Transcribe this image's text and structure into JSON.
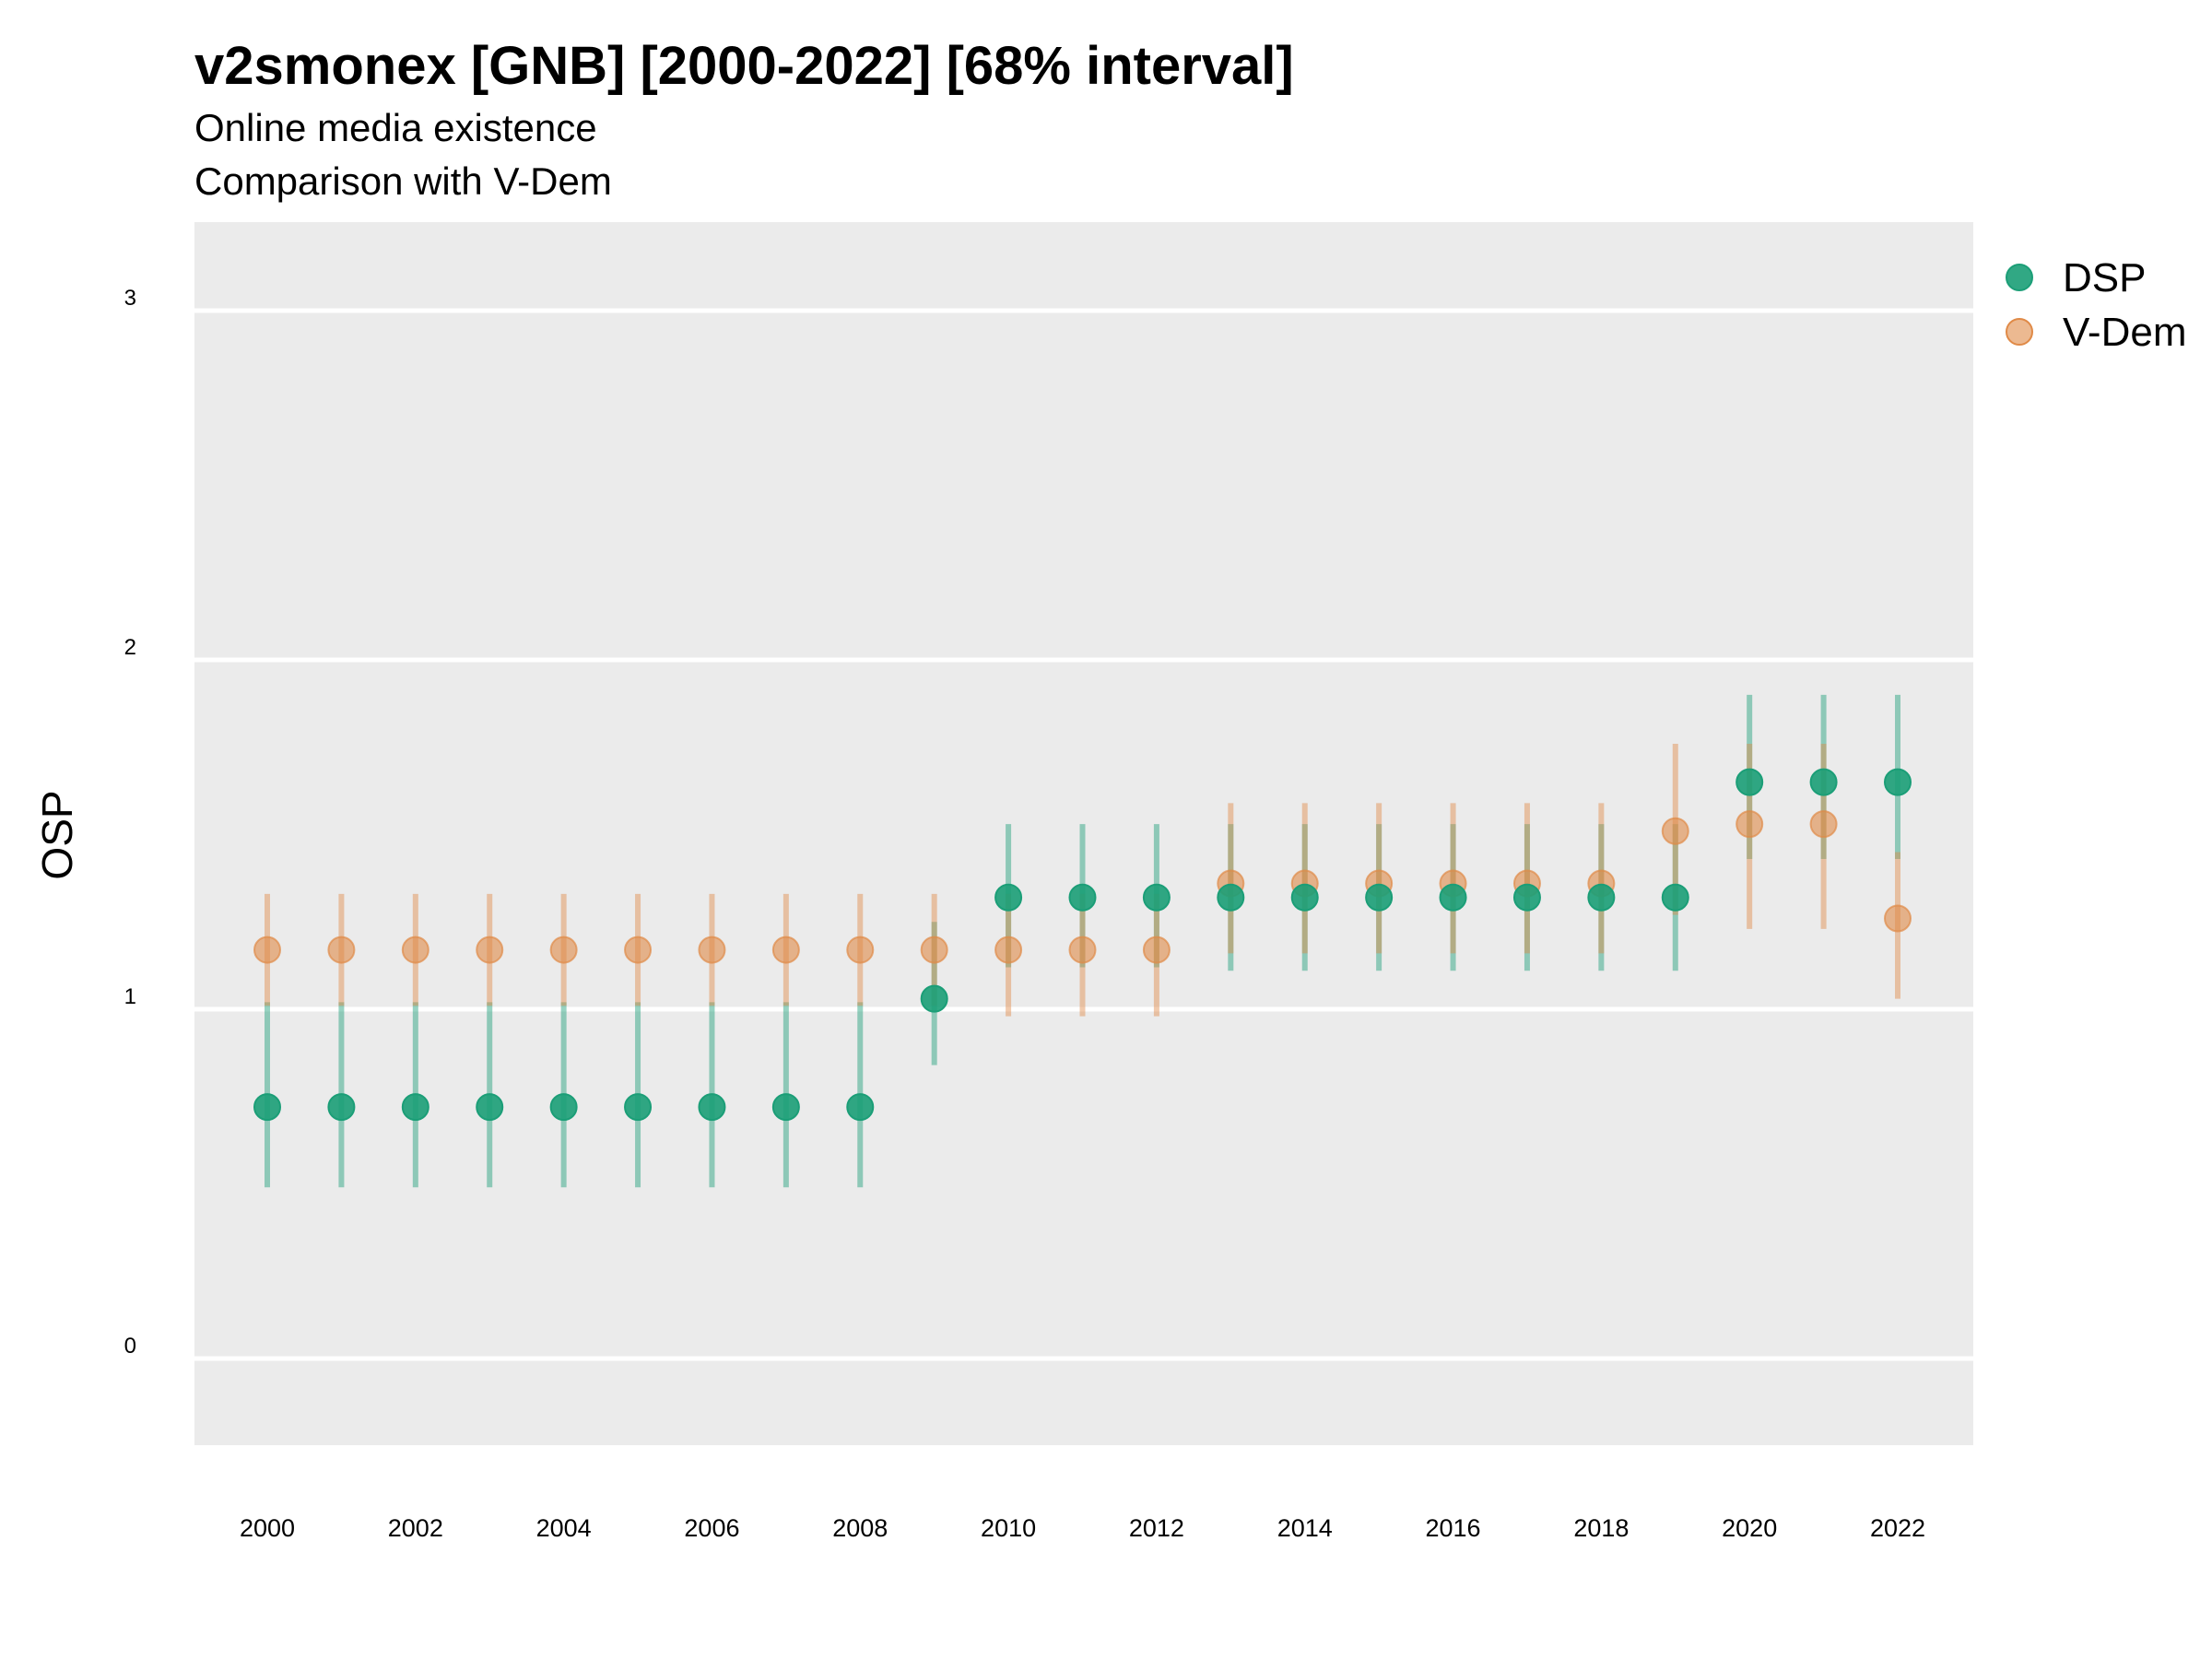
{
  "chart_data": {
    "type": "scatter",
    "title": "v2smonex [GNB] [2000-2022] [68% interval]",
    "subtitle_lines": [
      "Online media existence",
      "Comparison with V-Dem"
    ],
    "xlabel": "",
    "ylabel": "OSP",
    "ylim": [
      -0.25,
      3.25
    ],
    "y_ticks": [
      "0",
      "1",
      "2",
      "3"
    ],
    "x_tick_labels": [
      "2000",
      "2002",
      "2004",
      "2006",
      "2008",
      "2010",
      "2012",
      "2014",
      "2016",
      "2018",
      "2020",
      "2022"
    ],
    "grid": true,
    "legend_position": "right",
    "x": [
      2000,
      2001,
      2002,
      2003,
      2004,
      2005,
      2006,
      2007,
      2008,
      2009,
      2010,
      2011,
      2012,
      2013,
      2014,
      2015,
      2016,
      2017,
      2018,
      2019,
      2020,
      2021,
      2022
    ],
    "series": [
      {
        "name": "DSP",
        "color": "#1b9e77",
        "values": [
          0.72,
          0.72,
          0.72,
          0.72,
          0.72,
          0.72,
          0.72,
          0.72,
          0.72,
          1.03,
          1.32,
          1.32,
          1.32,
          1.32,
          1.32,
          1.32,
          1.32,
          1.32,
          1.32,
          1.32,
          1.65,
          1.65,
          1.65
        ],
        "lower": [
          0.49,
          0.49,
          0.49,
          0.49,
          0.49,
          0.49,
          0.49,
          0.49,
          0.49,
          0.84,
          1.12,
          1.12,
          1.12,
          1.11,
          1.11,
          1.11,
          1.11,
          1.11,
          1.11,
          1.11,
          1.43,
          1.43,
          1.43
        ],
        "upper": [
          1.02,
          1.02,
          1.02,
          1.02,
          1.02,
          1.02,
          1.02,
          1.02,
          1.02,
          1.25,
          1.53,
          1.53,
          1.53,
          1.53,
          1.53,
          1.53,
          1.53,
          1.53,
          1.53,
          1.53,
          1.9,
          1.9,
          1.9
        ]
      },
      {
        "name": "V-Dem",
        "color": "#e08a47",
        "values": [
          1.17,
          1.17,
          1.17,
          1.17,
          1.17,
          1.17,
          1.17,
          1.17,
          1.17,
          1.17,
          1.17,
          1.17,
          1.17,
          1.36,
          1.36,
          1.36,
          1.36,
          1.36,
          1.36,
          1.51,
          1.53,
          1.53,
          1.26
        ],
        "lower": [
          1.01,
          1.01,
          1.01,
          1.01,
          1.01,
          1.01,
          1.01,
          1.01,
          1.01,
          1.01,
          0.98,
          0.98,
          0.98,
          1.16,
          1.16,
          1.16,
          1.16,
          1.16,
          1.16,
          1.27,
          1.23,
          1.23,
          1.03
        ],
        "upper": [
          1.33,
          1.33,
          1.33,
          1.33,
          1.33,
          1.33,
          1.33,
          1.33,
          1.33,
          1.33,
          1.33,
          1.33,
          1.33,
          1.59,
          1.59,
          1.59,
          1.59,
          1.59,
          1.59,
          1.76,
          1.76,
          1.76,
          1.45
        ]
      }
    ]
  }
}
